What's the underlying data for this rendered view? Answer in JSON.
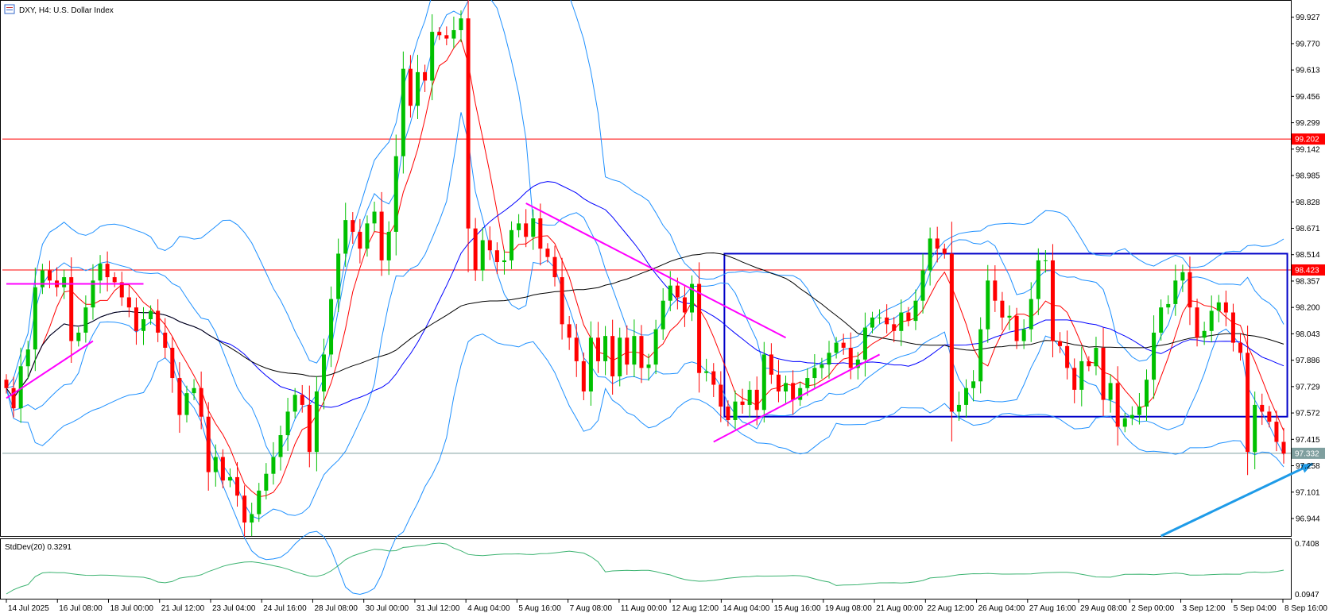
{
  "window": {
    "title": "DXY, H4:  U.S. Dollar Index",
    "icon": "chart-window-icon"
  },
  "indicator": {
    "label": "StdDev(20) 0.3291",
    "ticks": [
      "0.7408",
      "0.0947"
    ]
  },
  "colors": {
    "bull": "#00c000",
    "bear": "#ff0000",
    "bollinger": "#1e90ff",
    "ma_fast": "#ff0000",
    "ma_mid": "#0000ff",
    "ma_slow": "#000000",
    "range_box": "#0000c8",
    "trendline": "#ff00ff",
    "arrow": "#1e9be8",
    "stddev": "#3cb371",
    "level": "#ff0000"
  },
  "chart_data": {
    "type": "candlestick",
    "symbol": "DXY",
    "timeframe": "H4",
    "name": "U.S. Dollar Index",
    "ylim": [
      96.84,
      100.02
    ],
    "y_ticks": [
      "99.927",
      "99.770",
      "99.613",
      "99.456",
      "99.299",
      "99.142",
      "98.985",
      "98.828",
      "98.671",
      "98.514",
      "98.357",
      "98.200",
      "98.043",
      "97.886",
      "97.729",
      "97.572",
      "97.415",
      "97.258",
      "97.101",
      "96.944"
    ],
    "x_ticks": [
      "14 Jul 2025",
      "16 Jul 08:00",
      "18 Jul 00:00",
      "21 Jul 12:00",
      "23 Jul 04:00",
      "24 Jul 16:00",
      "28 Jul 08:00",
      "30 Jul 00:00",
      "31 Jul 12:00",
      "4 Aug 04:00",
      "5 Aug 16:00",
      "7 Aug 08:00",
      "11 Aug 00:00",
      "12 Aug 12:00",
      "14 Aug 04:00",
      "15 Aug 16:00",
      "19 Aug 08:00",
      "21 Aug 00:00",
      "22 Aug 12:00",
      "26 Aug 04:00",
      "27 Aug 16:00",
      "29 Aug 08:00",
      "2 Sep 00:00",
      "3 Sep 12:00",
      "5 Sep 04:00",
      "8 Sep 16:00"
    ],
    "levels": [
      {
        "label": "99.202",
        "value": 99.202
      },
      {
        "label": "98.423",
        "value": 98.423
      }
    ],
    "current_price": {
      "label": "97.332",
      "value": 97.332
    },
    "closes": [
      97.72,
      97.6,
      97.85,
      97.95,
      98.32,
      98.42,
      98.36,
      98.32,
      98.38,
      98.0,
      98.05,
      98.2,
      98.36,
      98.46,
      98.38,
      98.35,
      98.26,
      98.2,
      98.06,
      98.13,
      98.18,
      98.05,
      97.96,
      97.78,
      97.56,
      97.69,
      97.72,
      97.55,
      97.22,
      97.31,
      97.17,
      97.19,
      97.08,
      96.92,
      96.97,
      97.11,
      97.21,
      97.31,
      97.44,
      97.58,
      97.68,
      97.62,
      97.34,
      97.7,
      97.92,
      98.25,
      98.52,
      98.72,
      98.65,
      98.55,
      98.7,
      98.77,
      98.48,
      98.65,
      99.1,
      99.62,
      99.4,
      99.6,
      99.55,
      99.84,
      99.82,
      99.8,
      99.85,
      99.92,
      98.67,
      98.42,
      98.6,
      98.54,
      98.47,
      98.48,
      98.66,
      98.7,
      98.62,
      98.73,
      98.55,
      98.5,
      98.38,
      98.1,
      98.02,
      97.88,
      97.7,
      98.02,
      97.88,
      98.03,
      97.79,
      98.02,
      97.86,
      98.03,
      97.84,
      97.86,
      98.07,
      98.24,
      98.33,
      98.26,
      98.17,
      98.34,
      97.81,
      97.82,
      97.74,
      97.61,
      97.53,
      97.64,
      97.62,
      97.71,
      97.59,
      97.92,
      97.8,
      97.7,
      97.75,
      97.65,
      97.72,
      97.78,
      97.84,
      97.86,
      97.93,
      97.99,
      97.96,
      97.84,
      97.89,
      98.08,
      98.14,
      98.14,
      98.1,
      98.06,
      98.17,
      98.12,
      98.24,
      98.42,
      98.61,
      98.55,
      98.52,
      97.58,
      97.62,
      97.72,
      97.76,
      98.07,
      98.36,
      98.24,
      98.14,
      98.15,
      98.0,
      98.07,
      98.25,
      98.48,
      98.48,
      98.0,
      97.97,
      97.84,
      97.71,
      97.88,
      97.85,
      97.96,
      97.65,
      97.75,
      97.49,
      97.54,
      97.56,
      97.61,
      97.77,
      98.05,
      98.2,
      98.22,
      98.36,
      98.41,
      98.2,
      98.02,
      98.06,
      98.18,
      98.23,
      98.17,
      97.99,
      97.93,
      97.34,
      97.62,
      97.58,
      97.52,
      97.4,
      97.33
    ]
  }
}
